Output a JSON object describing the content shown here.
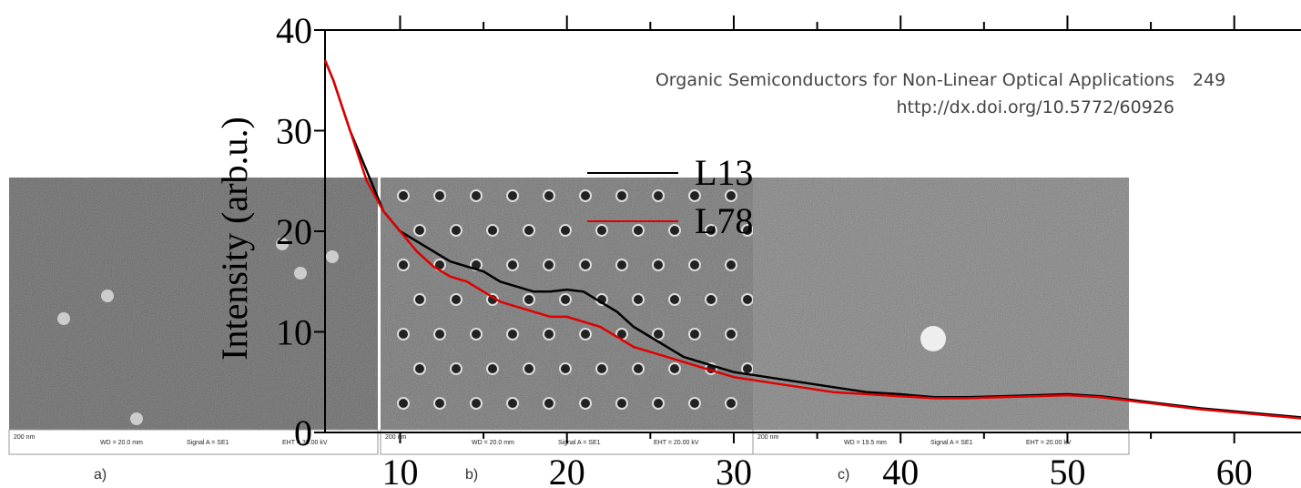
{
  "header": {
    "title": "Organic Semiconductors for Non-Linear Optical Applications",
    "page": "249",
    "doi": "http://dx.doi.org/10.5772/60926"
  },
  "images": [
    {
      "label": "a)",
      "scale": "200 nm",
      "wd": "WD = 20.0 mm",
      "signal": "Signal A = SE1",
      "eht": "EHT = 30.00 kV"
    },
    {
      "label": "b)",
      "scale": "200 nm",
      "wd": "WD = 20.0 mm",
      "signal": "Signal A = SE1",
      "eht": "EHT = 20.00 kV"
    },
    {
      "label": "c)",
      "scale": "200 nm",
      "wd": "WD = 19.5 mm",
      "signal": "Signal A = SE1",
      "eht": "EHT = 20.00 kV"
    }
  ],
  "chart_data": {
    "type": "line",
    "y_label": "Intensity (arb.u.)",
    "x": [
      5.5,
      6,
      7,
      8,
      9,
      10,
      11,
      12,
      13,
      14,
      15,
      16,
      17,
      18,
      19,
      20,
      21,
      22,
      23,
      24,
      25,
      26,
      27,
      28,
      29,
      30,
      32,
      34,
      36,
      38,
      40,
      42,
      44,
      46,
      48,
      50,
      52,
      54,
      56,
      58,
      60,
      62,
      64
    ],
    "series": [
      {
        "name": "L13",
        "color": "#000000",
        "values": [
          37,
          35,
          30,
          26,
          22,
          20,
          19,
          18,
          17,
          16.5,
          16,
          15,
          14.5,
          14,
          14,
          14.2,
          14,
          13,
          12,
          10.5,
          9.5,
          8.5,
          7.5,
          7,
          6.5,
          6,
          5.5,
          5,
          4.5,
          4,
          3.8,
          3.5,
          3.5,
          3.6,
          3.7,
          3.8,
          3.6,
          3.2,
          2.8,
          2.4,
          2.1,
          1.8,
          1.5
        ]
      },
      {
        "name": "L78",
        "color": "#e00000",
        "values": [
          37,
          35,
          30,
          25,
          22,
          20,
          18,
          16.5,
          15.5,
          15,
          14,
          13,
          12.5,
          12,
          11.5,
          11.5,
          11,
          10.5,
          9.5,
          8.5,
          8,
          7.5,
          7,
          6.5,
          6,
          5.5,
          5,
          4.5,
          4,
          3.8,
          3.6,
          3.4,
          3.4,
          3.5,
          3.6,
          3.7,
          3.5,
          3.1,
          2.7,
          2.3,
          2,
          1.7,
          1.4
        ]
      }
    ],
    "xlim": [
      5.5,
      64
    ],
    "xticks": [
      10,
      20,
      30,
      40,
      50,
      60
    ],
    "xminorticks": [
      15,
      25,
      35,
      45,
      55
    ],
    "ylim": [
      0,
      40
    ],
    "yticks": [
      0,
      10,
      20,
      30,
      40
    ]
  }
}
